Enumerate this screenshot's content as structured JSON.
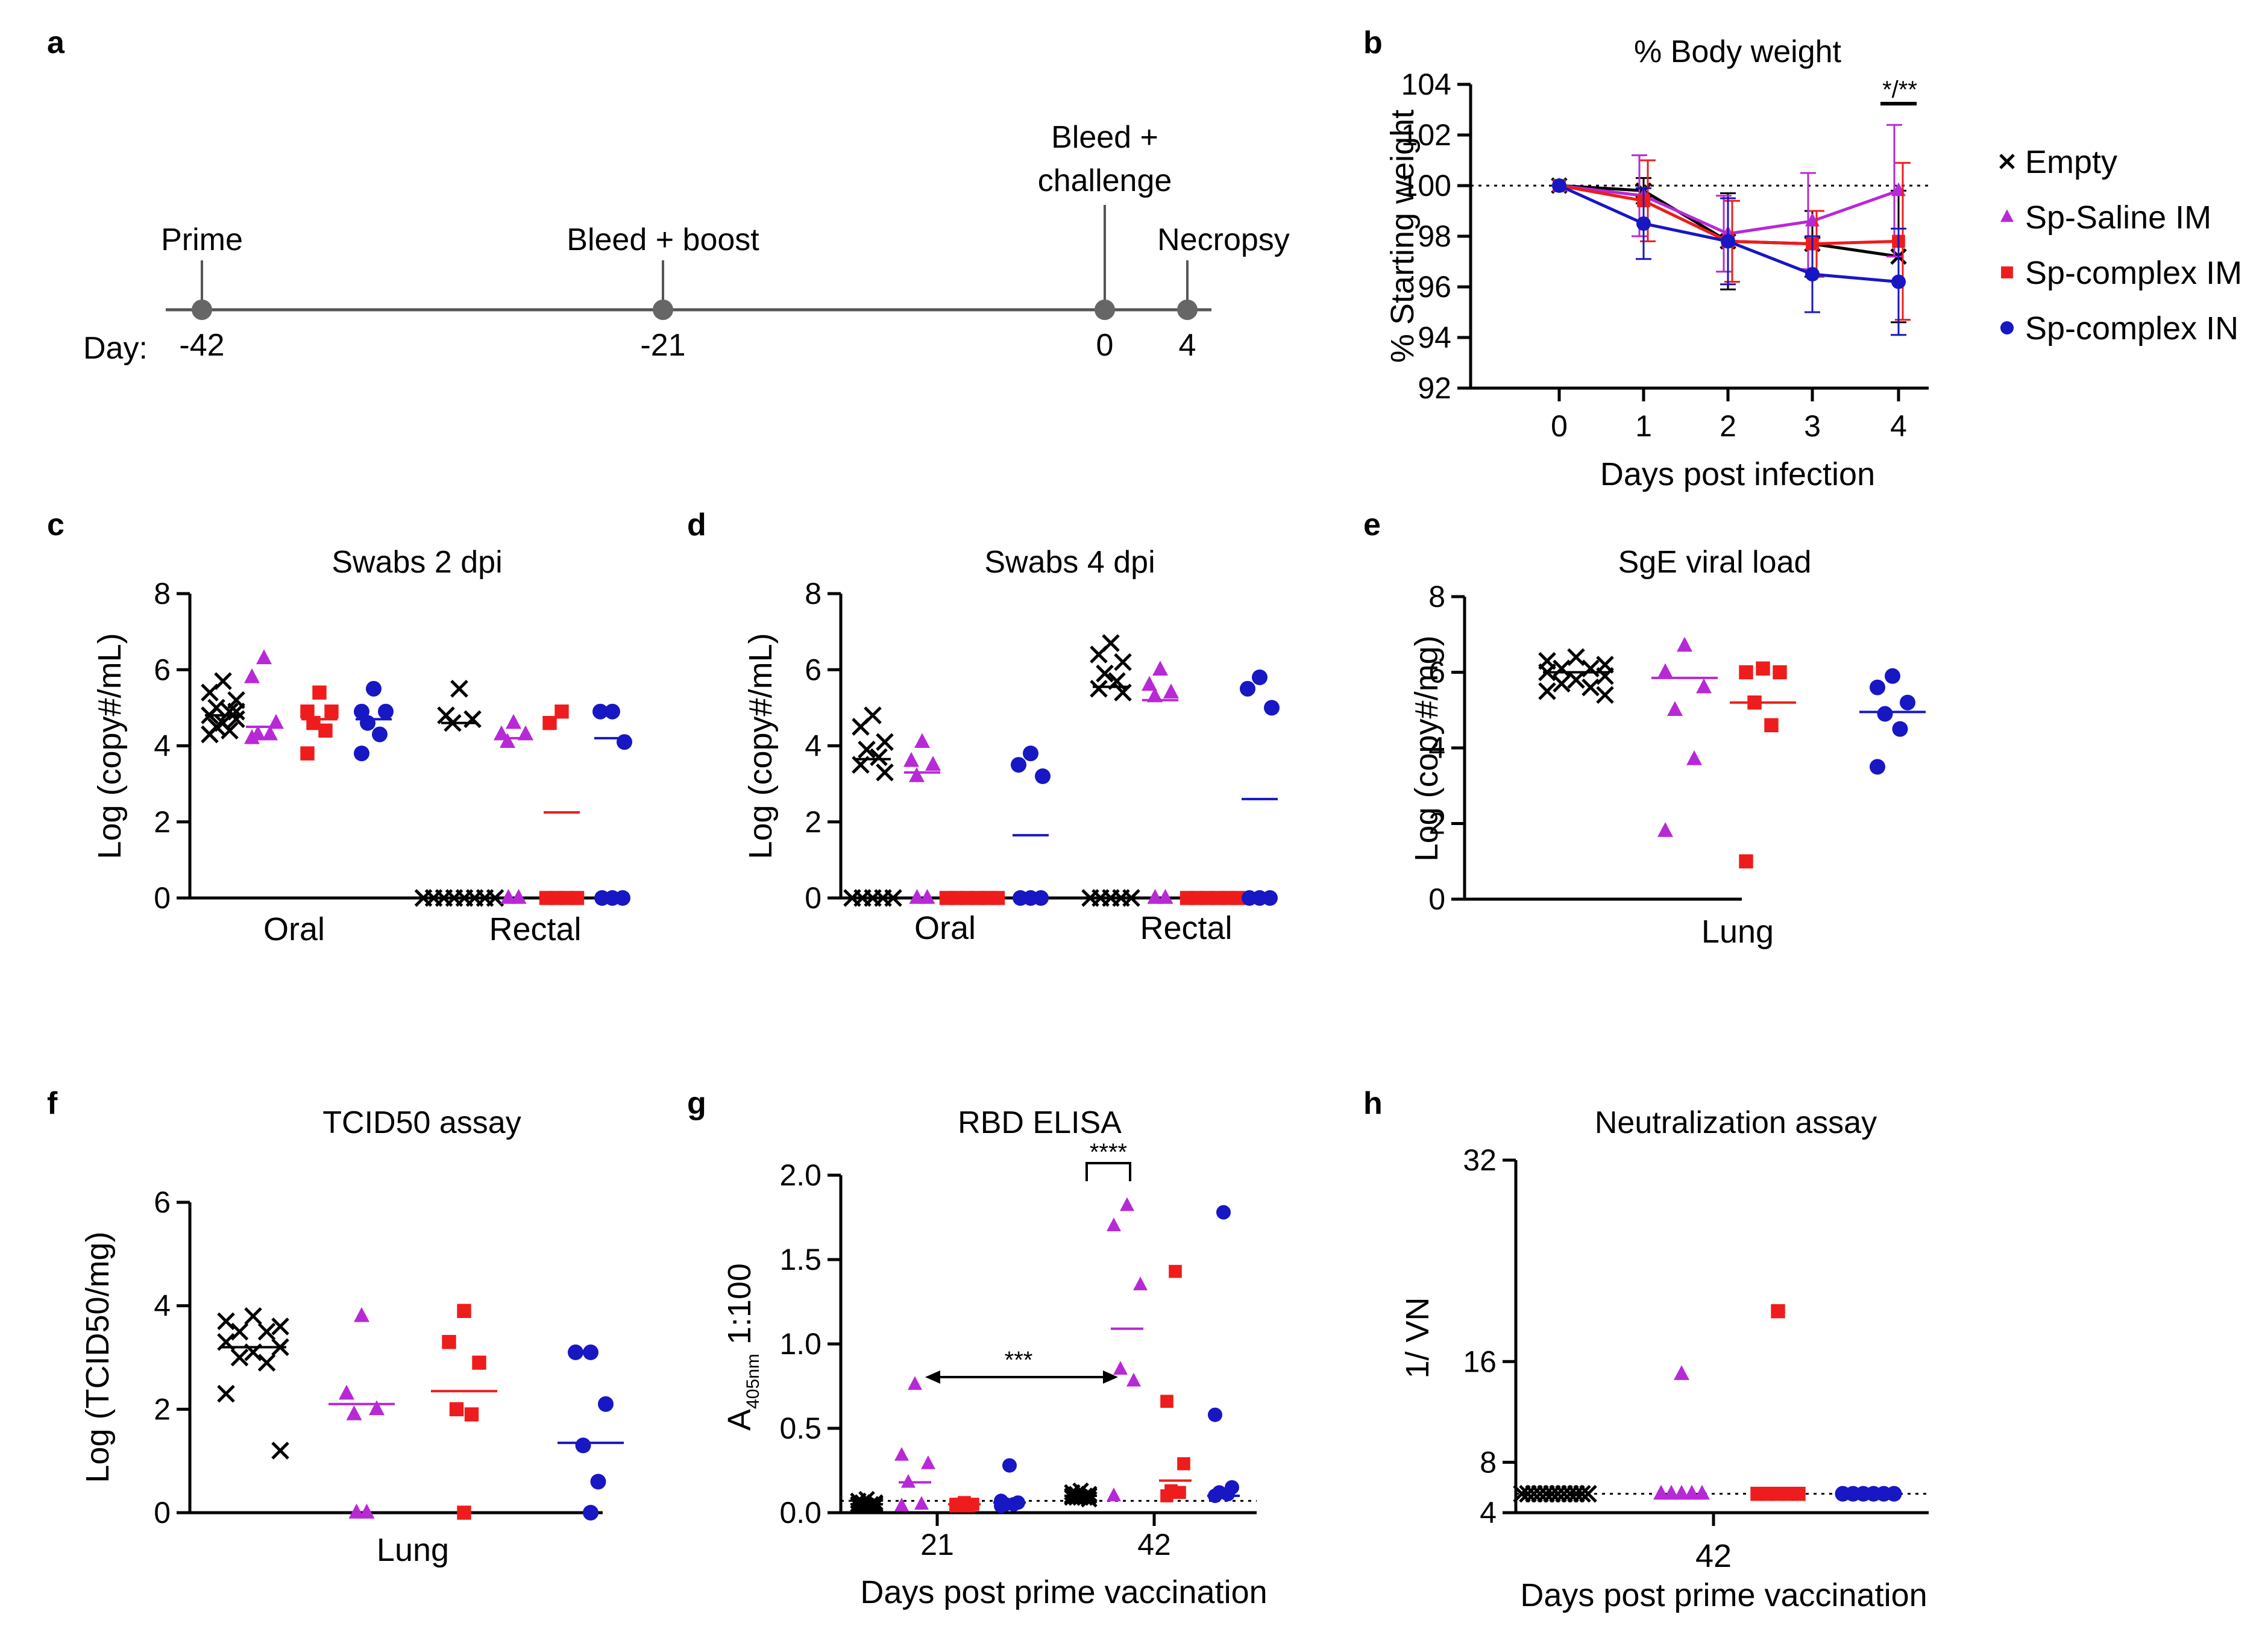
{
  "colors": {
    "empty": "#000000",
    "saline": "#b829d6",
    "complexIM": "#ee1c1c",
    "complexIN": "#1717c4",
    "axis": "#000000",
    "timeline": "#555555"
  },
  "legend": [
    {
      "key": "empty",
      "label": "Empty",
      "marker": "x"
    },
    {
      "key": "saline",
      "label": "Sp-Saline IM",
      "marker": "triangle"
    },
    {
      "key": "complexIM",
      "label": "Sp-complex IM",
      "marker": "square"
    },
    {
      "key": "complexIN",
      "label": "Sp-complex IN",
      "marker": "circle"
    }
  ],
  "panels": {
    "a": {
      "label": "a",
      "day_prefix": "Day:"
    },
    "b": {
      "label": "b"
    },
    "c": {
      "label": "c"
    },
    "d": {
      "label": "d"
    },
    "e": {
      "label": "e"
    },
    "f": {
      "label": "f"
    },
    "g": {
      "label": "g"
    },
    "h": {
      "label": "h"
    }
  },
  "chart_data": [
    {
      "panel": "a",
      "type": "timeline",
      "events": [
        {
          "day": "-42",
          "label": "Prime"
        },
        {
          "day": "-21",
          "label": "Bleed + boost"
        },
        {
          "day": "0",
          "label": "Bleed + challenge",
          "label_lines": [
            "Bleed +",
            "challenge"
          ]
        },
        {
          "day": "4",
          "label": "Necropsy"
        }
      ]
    },
    {
      "panel": "b",
      "type": "line",
      "title": "% Body weight",
      "xlabel": "Days post infection",
      "ylabel": "% Starting weight",
      "x": [
        0,
        1,
        2,
        3,
        4
      ],
      "ylim": [
        92,
        104
      ],
      "yticks": [
        92,
        94,
        96,
        98,
        100,
        102,
        104
      ],
      "reference_line": 100,
      "significance": "*/**",
      "series": [
        {
          "key": "empty",
          "name": "Empty",
          "values": [
            100,
            99.8,
            97.8,
            97.7,
            97.2
          ],
          "err": [
            0,
            0.5,
            1.9,
            1.3,
            2.6
          ]
        },
        {
          "key": "saline",
          "name": "Sp-Saline IM",
          "values": [
            100,
            99.6,
            98.1,
            98.6,
            99.8
          ],
          "err": [
            0,
            1.6,
            1.5,
            1.9,
            2.6
          ]
        },
        {
          "key": "complexIM",
          "name": "Sp-complex IM",
          "values": [
            100,
            99.4,
            97.8,
            97.7,
            97.8
          ],
          "err": [
            0,
            1.6,
            1.6,
            1.3,
            3.1
          ]
        },
        {
          "key": "complexIN",
          "name": "Sp-complex IN",
          "values": [
            100,
            98.5,
            97.8,
            96.5,
            96.2
          ],
          "err": [
            0,
            1.4,
            1.7,
            1.5,
            2.1
          ]
        }
      ]
    },
    {
      "panel": "c",
      "type": "scatter",
      "title": "Swabs 2 dpi",
      "ylabel": "Log (copy#/mL)",
      "ylim": [
        0,
        8
      ],
      "yticks": [
        0,
        2,
        4,
        6,
        8
      ],
      "categories": [
        "Oral",
        "Rectal"
      ],
      "groups": [
        {
          "category": "Oral",
          "series": "empty",
          "values": [
            5.7,
            5.4,
            5.2,
            5.0,
            4.9,
            4.8,
            4.7,
            4.6,
            4.5,
            4.4,
            4.3,
            4.9
          ],
          "mean": 4.8
        },
        {
          "category": "Oral",
          "series": "saline",
          "values": [
            6.3,
            5.8,
            4.6,
            4.3,
            4.3,
            4.2
          ],
          "mean": 4.5
        },
        {
          "category": "Oral",
          "series": "complexIM",
          "values": [
            5.4,
            4.9,
            4.9,
            4.6,
            4.4,
            3.8
          ],
          "mean": 4.7
        },
        {
          "category": "Oral",
          "series": "complexIN",
          "values": [
            5.5,
            4.9,
            4.9,
            4.6,
            4.3,
            3.8
          ],
          "mean": 4.7
        },
        {
          "category": "Rectal",
          "series": "empty",
          "values": [
            5.5,
            4.8,
            4.7,
            4.6,
            0,
            0,
            0,
            0,
            0,
            0,
            0,
            0
          ],
          "mean": 4.6
        },
        {
          "category": "Rectal",
          "series": "saline",
          "values": [
            4.6,
            4.3,
            4.3,
            4.1,
            0,
            0
          ],
          "mean": 4.2
        },
        {
          "category": "Rectal",
          "series": "complexIM",
          "values": [
            4.9,
            4.6,
            0,
            0,
            0,
            0
          ],
          "mean": 2.25
        },
        {
          "category": "Rectal",
          "series": "complexIN",
          "values": [
            4.9,
            4.9,
            4.1,
            0,
            0,
            0
          ],
          "mean": 4.2
        }
      ]
    },
    {
      "panel": "d",
      "type": "scatter",
      "title": "Swabs 4 dpi",
      "ylabel": "Log (copy#/mL)",
      "ylim": [
        0,
        8
      ],
      "yticks": [
        0,
        2,
        4,
        6,
        8
      ],
      "categories": [
        "Oral",
        "Rectal"
      ],
      "groups": [
        {
          "category": "Oral",
          "series": "empty",
          "values": [
            4.8,
            4.5,
            4.1,
            3.9,
            3.7,
            3.5,
            3.3,
            0,
            0,
            0,
            0,
            0
          ],
          "mean": 3.65
        },
        {
          "category": "Oral",
          "series": "saline",
          "values": [
            4.1,
            3.6,
            3.5,
            3.2,
            0,
            0
          ],
          "mean": 3.3
        },
        {
          "category": "Oral",
          "series": "complexIM",
          "values": [
            0,
            0,
            0,
            0,
            0,
            0
          ],
          "mean": 0
        },
        {
          "category": "Oral",
          "series": "complexIN",
          "values": [
            3.8,
            3.5,
            3.2,
            0,
            0,
            0
          ],
          "mean": 1.65
        },
        {
          "category": "Rectal",
          "series": "empty",
          "values": [
            6.7,
            6.4,
            6.2,
            5.9,
            5.7,
            5.5,
            5.4,
            0,
            0,
            0,
            0,
            0
          ],
          "mean": 5.55
        },
        {
          "category": "Rectal",
          "series": "saline",
          "values": [
            6.0,
            5.6,
            5.4,
            5.3,
            0,
            0
          ],
          "mean": 5.2
        },
        {
          "category": "Rectal",
          "series": "complexIM",
          "values": [
            0,
            0,
            0,
            0,
            0,
            0
          ],
          "mean": 0
        },
        {
          "category": "Rectal",
          "series": "complexIN",
          "values": [
            5.8,
            5.5,
            5.0,
            0,
            0,
            0
          ],
          "mean": 2.6
        }
      ]
    },
    {
      "panel": "e",
      "type": "scatter",
      "title": "SgE viral load",
      "ylabel": "Log (copy#/mg)",
      "ylim": [
        0,
        8
      ],
      "yticks": [
        0,
        2,
        4,
        6,
        8
      ],
      "categories": [
        "Lung"
      ],
      "groups": [
        {
          "category": "Lung",
          "series": "empty",
          "values": [
            6.4,
            6.3,
            6.2,
            6.1,
            6.1,
            6.0,
            5.9,
            5.8,
            5.7,
            5.6,
            5.5,
            5.4
          ],
          "mean": 6.0
        },
        {
          "category": "Lung",
          "series": "saline",
          "values": [
            6.7,
            6.0,
            5.6,
            5.0,
            3.7,
            1.8
          ],
          "mean": 5.85
        },
        {
          "category": "Lung",
          "series": "complexIM",
          "values": [
            6.1,
            6.0,
            6.0,
            5.2,
            4.6,
            1.0
          ],
          "mean": 5.2
        },
        {
          "category": "Lung",
          "series": "complexIN",
          "values": [
            5.9,
            5.6,
            5.2,
            4.9,
            4.5,
            3.5
          ],
          "mean": 4.95
        }
      ]
    },
    {
      "panel": "f",
      "type": "scatter",
      "title": "TCID50 assay",
      "ylabel": "Log (TCID50/mg)",
      "ylim": [
        0,
        6
      ],
      "yticks": [
        0,
        2,
        4,
        6
      ],
      "categories": [
        "Lung"
      ],
      "groups": [
        {
          "category": "Lung",
          "series": "empty",
          "values": [
            3.8,
            3.7,
            3.6,
            3.5,
            3.5,
            3.3,
            3.2,
            3.1,
            3.0,
            2.9,
            2.3,
            1.2
          ],
          "mean": 3.2
        },
        {
          "category": "Lung",
          "series": "saline",
          "values": [
            3.8,
            2.3,
            2.0,
            1.9,
            0,
            0
          ],
          "mean": 2.1
        },
        {
          "category": "Lung",
          "series": "complexIM",
          "values": [
            3.9,
            3.3,
            2.9,
            2.0,
            1.9,
            0
          ],
          "mean": 2.35
        },
        {
          "category": "Lung",
          "series": "complexIN",
          "values": [
            3.1,
            3.1,
            2.1,
            1.3,
            0.6,
            0
          ],
          "mean": 1.35
        }
      ]
    },
    {
      "panel": "g",
      "type": "scatter",
      "title": "RBD ELISA",
      "ylabel_main": "A",
      "ylabel_sub": "405nm",
      "ylabel_tail": " 1:100",
      "xlabel": "Days post prime vaccination",
      "ylim": [
        0,
        2.0
      ],
      "yticks": [
        "0.0",
        "0.5",
        "1.0",
        "1.5",
        "2.0"
      ],
      "categories": [
        "21",
        "42"
      ],
      "reference_line": 0.07,
      "sig_top": "****",
      "sig_arrow": "***",
      "groups": [
        {
          "category": "21",
          "series": "empty",
          "values": [
            0.08,
            0.07,
            0.06,
            0.06,
            0.05,
            0.05,
            0.05,
            0.04,
            0.04,
            0.04,
            0.04,
            0.04
          ],
          "mean": 0.05
        },
        {
          "category": "21",
          "series": "saline",
          "values": [
            0.76,
            0.34,
            0.29,
            0.18,
            0.05,
            0.04
          ],
          "mean": 0.18
        },
        {
          "category": "21",
          "series": "complexIM",
          "values": [
            0.06,
            0.05,
            0.05,
            0.05,
            0.04,
            0.04
          ],
          "mean": 0.05
        },
        {
          "category": "21",
          "series": "complexIN",
          "values": [
            0.28,
            0.07,
            0.06,
            0.05,
            0.05,
            0.04
          ],
          "mean": 0.06
        },
        {
          "category": "42",
          "series": "empty",
          "values": [
            0.13,
            0.12,
            0.11,
            0.11,
            0.1,
            0.1,
            0.1,
            0.09,
            0.09,
            0.09,
            0.09,
            0.08
          ],
          "mean": 0.1
        },
        {
          "category": "42",
          "series": "saline",
          "values": [
            1.82,
            1.7,
            1.35,
            0.85,
            0.78,
            0.1
          ],
          "mean": 1.09
        },
        {
          "category": "42",
          "series": "complexIM",
          "values": [
            1.43,
            0.66,
            0.29,
            0.13,
            0.12,
            0.1
          ],
          "mean": 0.19
        },
        {
          "category": "42",
          "series": "complexIN",
          "values": [
            1.78,
            0.58,
            0.15,
            0.12,
            0.11,
            0.1
          ],
          "mean": 0.1
        }
      ]
    },
    {
      "panel": "h",
      "type": "scatter",
      "title": "Neutralization assay",
      "ylabel": "1/ VN",
      "xlabel": "Days post prime vaccination",
      "yscale": "log2",
      "ylim": [
        4,
        32
      ],
      "yticks": [
        4,
        8,
        16,
        32
      ],
      "categories": [
        "42"
      ],
      "reference_line": 5.5,
      "groups": [
        {
          "category": "42",
          "series": "empty",
          "values": [
            5.5,
            5.5,
            5.5,
            5.5,
            5.5,
            5.5,
            5.5,
            5.5,
            5.5,
            5.5,
            5.5,
            5.5
          ],
          "mean": 5.5
        },
        {
          "category": "42",
          "series": "saline",
          "values": [
            15,
            5.5,
            5.5,
            5.5,
            5.5,
            5.5
          ],
          "mean": 5.5
        },
        {
          "category": "42",
          "series": "complexIM",
          "values": [
            20,
            5.5,
            5.5,
            5.5,
            5.5,
            5.5
          ],
          "mean": 5.5
        },
        {
          "category": "42",
          "series": "complexIN",
          "values": [
            5.5,
            5.5,
            5.5,
            5.5,
            5.5,
            5.5
          ],
          "mean": 5.5
        }
      ]
    }
  ]
}
